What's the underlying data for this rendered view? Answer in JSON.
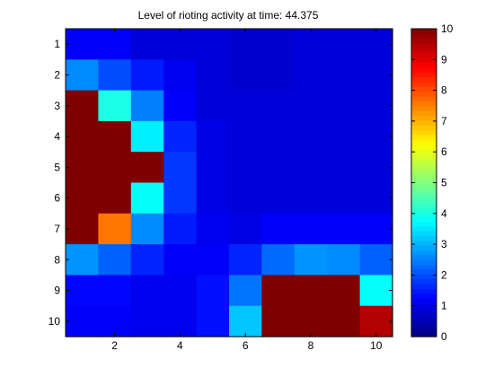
{
  "chart_data": {
    "type": "heatmap",
    "title": "Level of rioting activity at time: 44.375",
    "xlabel": "",
    "ylabel": "",
    "x_ticks": [
      "2",
      "4",
      "6",
      "8",
      "10"
    ],
    "y_ticks": [
      "1",
      "2",
      "3",
      "4",
      "5",
      "6",
      "7",
      "8",
      "9",
      "10"
    ],
    "colorbar_ticks": [
      "0",
      "1",
      "2",
      "3",
      "4",
      "5",
      "6",
      "7",
      "8",
      "9",
      "10"
    ],
    "clim": [
      0,
      10
    ],
    "colormap": "jet",
    "y_direction": "reverse",
    "grid": false,
    "values": [
      [
        1.2,
        1.2,
        0.9,
        0.9,
        0.9,
        0.8,
        0.8,
        0.9,
        0.9,
        0.9
      ],
      [
        2.6,
        2.0,
        1.5,
        1.1,
        0.9,
        0.8,
        0.8,
        0.9,
        0.9,
        0.9
      ],
      [
        10,
        4.0,
        2.5,
        1.2,
        0.9,
        0.9,
        0.9,
        0.9,
        0.9,
        0.9
      ],
      [
        10,
        10,
        3.6,
        1.6,
        1.0,
        0.9,
        0.9,
        0.9,
        0.9,
        0.9
      ],
      [
        10,
        10,
        10,
        1.8,
        1.0,
        0.9,
        0.9,
        0.9,
        0.9,
        0.9
      ],
      [
        10,
        10,
        3.8,
        1.8,
        1.0,
        0.9,
        0.9,
        0.9,
        0.9,
        0.9
      ],
      [
        10,
        7.6,
        2.6,
        1.5,
        1.1,
        1.0,
        1.2,
        1.2,
        1.2,
        1.2
      ],
      [
        2.7,
        2.2,
        1.6,
        1.2,
        1.2,
        1.6,
        2.3,
        2.7,
        2.6,
        2.2
      ],
      [
        1.3,
        1.3,
        1.1,
        1.1,
        1.4,
        2.4,
        10,
        10,
        10,
        3.8
      ],
      [
        1.2,
        1.2,
        1.1,
        1.1,
        1.4,
        3.2,
        10,
        10,
        10,
        9.5
      ]
    ]
  }
}
